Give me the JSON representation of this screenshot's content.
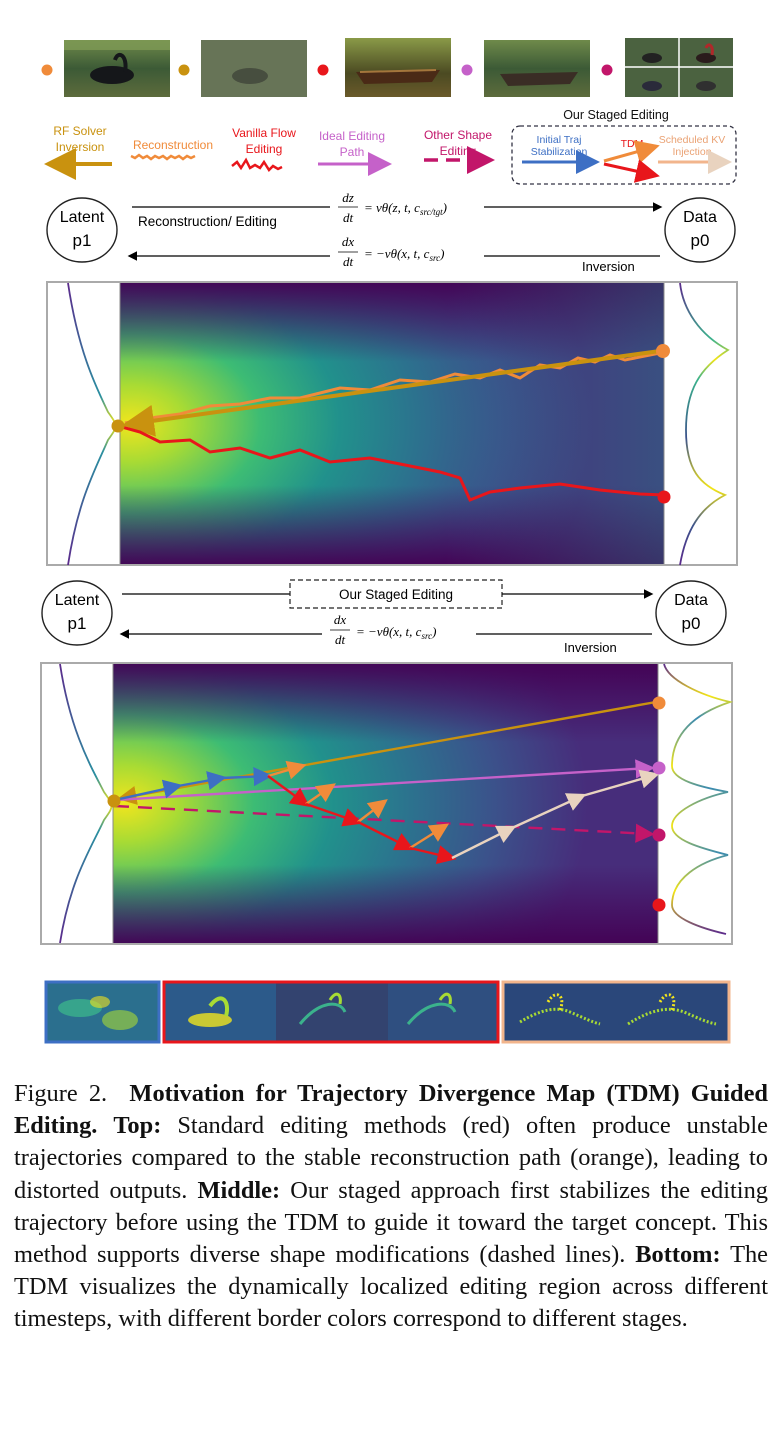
{
  "legend": {
    "rf_solver": [
      "RF Solver",
      "Inversion"
    ],
    "reconstruction": "Reconstruction",
    "vanilla": [
      "Vanilla Flow",
      "Editing"
    ],
    "ideal": [
      "Ideal Editing",
      "Path"
    ],
    "other_shape": [
      "Other Shape",
      "Editing"
    ],
    "staged_title": "Our Staged Editing",
    "initial_traj": [
      "Initial Traj",
      "Stabilization"
    ],
    "tdm": "TDM",
    "scheduled_kv": [
      "Scheduled KV",
      "Injection"
    ],
    "colors": {
      "gold": "#c9920f",
      "orange": "#f08b3a",
      "red": "#e8161b",
      "violet": "#c561c9",
      "magenta": "#c2166a",
      "blue": "#3d6fc4",
      "peach": "#f2b58c"
    }
  },
  "top": {
    "latent": [
      "Latent",
      "p1"
    ],
    "data": [
      "Data",
      "p0"
    ],
    "recon_label": "Reconstruction/ Editing",
    "eq1": "dz/dt = vθ(z, t, c_src/tgt)",
    "eq1_parts": {
      "num": "dz",
      "den": "dt",
      "rhs": "= vθ(z, t, c",
      "sub": "src/tgt",
      "close": ")"
    },
    "eq2_parts": {
      "num": "dx",
      "den": "dt",
      "rhs": "= −vθ(x, t, c",
      "sub": "src",
      "close": ")"
    },
    "inversion": "Inversion"
  },
  "middle": {
    "latent": [
      "Latent",
      "p1"
    ],
    "data": [
      "Data",
      "p0"
    ],
    "staged_label": "Our Staged Editing",
    "eq2_parts": {
      "num": "dx",
      "den": "dt",
      "rhs": "= −vθ(x, t, c",
      "sub": "src",
      "close": ")"
    },
    "inversion": "Inversion"
  },
  "caption": {
    "fig": "Figure 2.",
    "title": "Motivation for Trajectory Divergence Map (TDM) Guided Editing.",
    "top_h": "Top:",
    "top_t": "Standard editing methods (red) often produce unstable trajectories compared to the stable reconstruction path (orange), leading to distorted outputs.",
    "mid_h": "Middle:",
    "mid_t": "Our staged approach first stabilizes the editing trajectory before using the TDM to guide it toward the target concept. This method supports diverse shape modifications (dashed lines).",
    "bot_h": "Bottom:",
    "bot_t": "The TDM visualizes the dynamically localized editing region across different timesteps, with different border colors correspond to different stages."
  }
}
